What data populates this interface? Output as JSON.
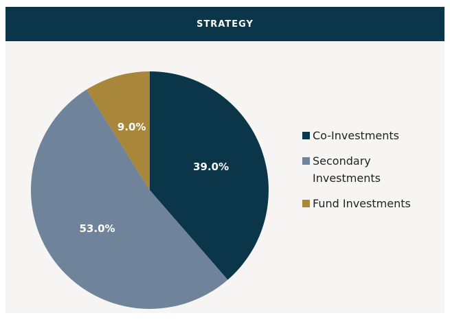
{
  "chart_data": {
    "type": "pie",
    "title": "STRATEGY",
    "categories": [
      "Co-Investments",
      "Secondary Investments",
      "Fund Investments"
    ],
    "values": [
      39,
      53,
      9
    ],
    "value_labels": [
      "39.0%",
      "53.0%",
      "9.0%"
    ],
    "colors": [
      "#0b364a",
      "#6f849b",
      "#a8863a"
    ]
  }
}
